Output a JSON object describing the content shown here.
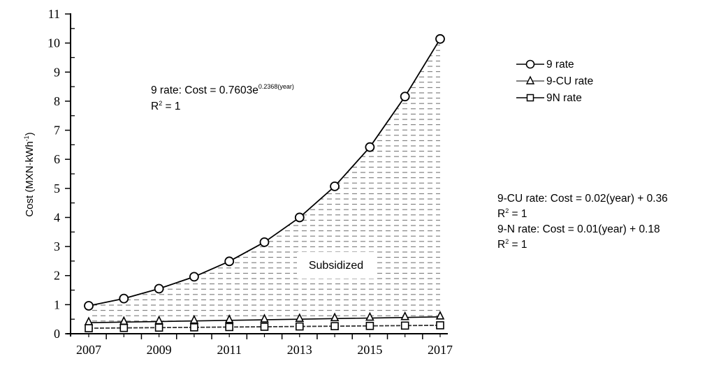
{
  "chart_data": {
    "type": "line",
    "title": "",
    "xlabel": "",
    "ylabel": "Cost (MXN·kWh⁻¹)",
    "ylabel_parts": {
      "main": "Cost (MXN·kWh",
      "sup": "-1",
      "end": ")"
    },
    "x": [
      2007,
      2008,
      2009,
      2010,
      2011,
      2012,
      2013,
      2014,
      2015,
      2016,
      2017
    ],
    "xlim": [
      2006.8,
      2017.5
    ],
    "ylim": [
      0,
      11
    ],
    "x_tick_labels": [
      "2007",
      "2009",
      "2011",
      "2013",
      "2015",
      "2017"
    ],
    "x_tick_values": [
      2007,
      2009,
      2011,
      2013,
      2015,
      2017
    ],
    "x_minor_ticks": [
      2008,
      2010,
      2012,
      2014,
      2016
    ],
    "y_tick_labels": [
      "0",
      "1",
      "2",
      "3",
      "4",
      "5",
      "6",
      "7",
      "8",
      "9",
      "10",
      "11"
    ],
    "y_tick_values": [
      0,
      1,
      2,
      3,
      4,
      5,
      6,
      7,
      8,
      9,
      10,
      11
    ],
    "grid": false,
    "legend_position": "top-right",
    "series": [
      {
        "name": "9 rate",
        "marker": "circle",
        "values": [
          0.96,
          1.21,
          1.55,
          1.96,
          2.49,
          3.15,
          4.0,
          5.07,
          6.42,
          8.16,
          10.14
        ]
      },
      {
        "name": "9-CU rate",
        "marker": "triangle",
        "values": [
          0.38,
          0.4,
          0.42,
          0.44,
          0.46,
          0.48,
          0.5,
          0.52,
          0.54,
          0.56,
          0.58
        ]
      },
      {
        "name": "9N rate",
        "marker": "square",
        "values": [
          0.19,
          0.2,
          0.21,
          0.22,
          0.23,
          0.24,
          0.25,
          0.26,
          0.27,
          0.28,
          0.29
        ]
      }
    ],
    "shaded_region": {
      "label": "Subsidized",
      "between": [
        "9 rate",
        "9-CU rate"
      ],
      "pattern": "horizontal-dashes"
    },
    "annotations": [
      {
        "id": "eq9",
        "lines": [
          {
            "text": "9 rate: Cost = 0.7603e",
            "sup": "0.2368(year)"
          },
          {
            "text": "R",
            "sup": "2",
            "after": " = 1"
          }
        ]
      },
      {
        "id": "eqcu",
        "lines": [
          {
            "text": "9-CU rate: Cost = 0.02(year) + 0.36"
          },
          {
            "text": "R",
            "sup": "2",
            "after": " = 1"
          },
          {
            "text": "9-N rate: Cost = 0.01(year) + 0.18"
          },
          {
            "text": "R",
            "sup": "2",
            "after": " = 1"
          }
        ]
      }
    ]
  }
}
